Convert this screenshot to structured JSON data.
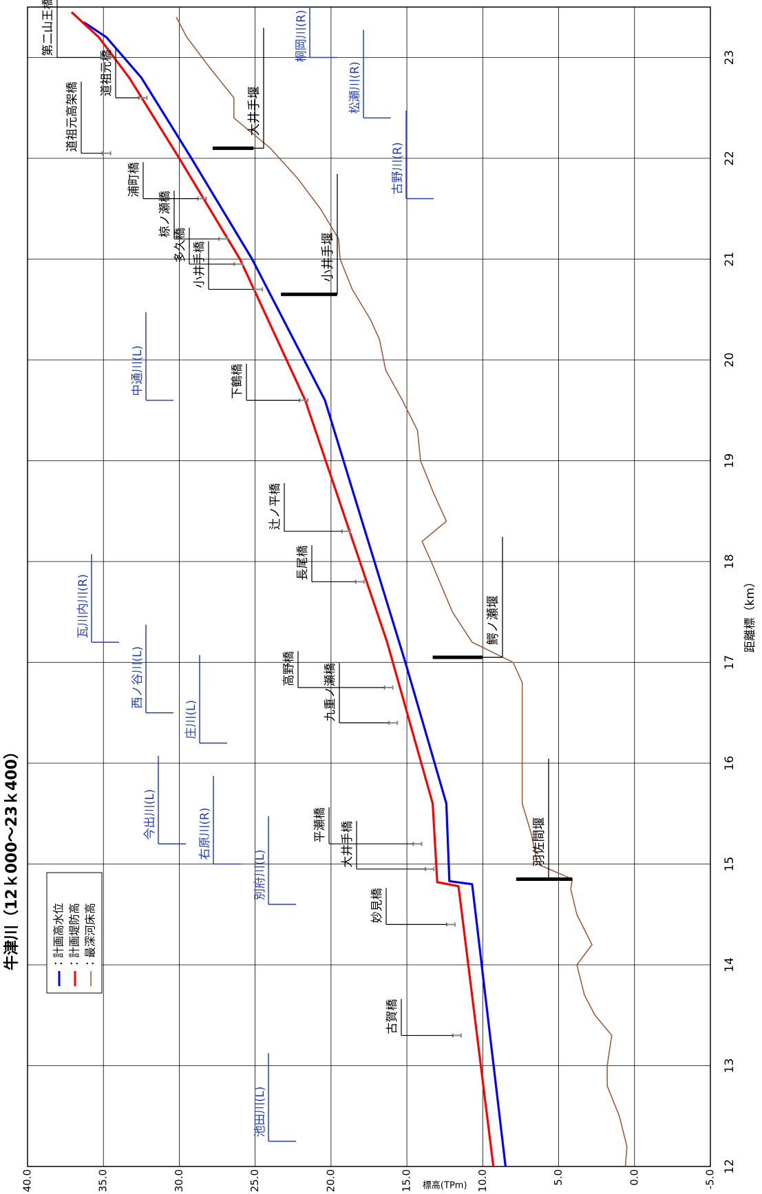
{
  "chart_data": {
    "type": "line",
    "title": "牛津川（12ｋ000～23ｋ400）",
    "x_label": "距離標（km）",
    "y_label": "標高(TPm)",
    "xlim": [
      12,
      23.5
    ],
    "ylim": [
      -5,
      40
    ],
    "xticks": [
      12,
      13,
      14,
      15,
      16,
      17,
      18,
      19,
      20,
      21,
      22,
      23
    ],
    "yticks": [
      {
        "value": 40,
        "label": "40.0"
      },
      {
        "value": 35,
        "label": "35.0"
      },
      {
        "value": 30,
        "label": "30.0"
      },
      {
        "value": 25,
        "label": "25.0"
      },
      {
        "value": 20,
        "label": "20.0"
      },
      {
        "value": 15,
        "label": "15.0"
      },
      {
        "value": 10,
        "label": "10.0"
      },
      {
        "value": 5,
        "label": "5.0"
      },
      {
        "value": 0,
        "label": "0.0"
      },
      {
        "value": -5,
        "label": "-5.0"
      }
    ],
    "grid": true,
    "legend": "upper left",
    "series": [
      {
        "name": "：計画高水位",
        "color": "#0000ff",
        "x": [
          12,
          14.8,
          14.83,
          15.6,
          17.0,
          19.6,
          21.0,
          22.0,
          22.8,
          23.2,
          23.35
        ],
        "values": [
          8.5,
          10.7,
          12.2,
          12.4,
          15.1,
          20.4,
          25.2,
          29.2,
          32.5,
          34.8,
          36.3
        ]
      },
      {
        "name": "：計画堤防高",
        "color": "#ff0000",
        "x": [
          12,
          14.78,
          14.82,
          15.6,
          17.2,
          19.6,
          21.0,
          22.0,
          22.8,
          23.2,
          23.45
        ],
        "values": [
          9.3,
          11.6,
          13.0,
          13.3,
          16.3,
          21.7,
          26.0,
          30.0,
          33.3,
          35.3,
          37.1
        ]
      },
      {
        "name": "：最深河床高",
        "color": "#a0522d",
        "x": [
          12.0,
          12.2,
          12.5,
          12.8,
          13.0,
          13.3,
          13.5,
          13.7,
          14.0,
          14.2,
          14.5,
          14.75,
          14.85,
          15.0,
          15.3,
          15.6,
          16.0,
          16.5,
          16.8,
          17.0,
          17.2,
          17.5,
          18.0,
          18.2,
          18.4,
          18.7,
          19.0,
          19.3,
          19.6,
          19.9,
          20.2,
          20.4,
          20.7,
          21.0,
          21.2,
          21.5,
          21.8,
          22.1,
          22.4,
          22.6,
          22.9,
          23.2,
          23.4
        ],
        "values": [
          0.6,
          0.5,
          1.0,
          1.8,
          1.8,
          1.5,
          2.6,
          3.3,
          3.8,
          2.8,
          3.8,
          4.2,
          4.1,
          6.4,
          6.8,
          7.4,
          7.4,
          7.4,
          7.4,
          8.0,
          10.7,
          12.0,
          13.4,
          14.0,
          12.4,
          13.3,
          14.1,
          14.3,
          15.3,
          16.4,
          16.8,
          17.4,
          18.6,
          19.4,
          19.5,
          20.7,
          22.2,
          24.0,
          26.4,
          26.4,
          28.0,
          29.5,
          30.2
        ]
      }
    ],
    "bridges": [
      {
        "name": "古賀橋",
        "km": 13.3,
        "elevation": 11.7
      },
      {
        "name": "妙見橋",
        "km": 14.4,
        "elevation": 12.1
      },
      {
        "name": "大井手橋",
        "km": 14.95,
        "elevation": 13.5
      },
      {
        "name": "平瀬橋",
        "km": 15.2,
        "elevation": 14.3
      },
      {
        "name": "九重ノ瀬橋",
        "km": 16.4,
        "elevation": 15.9
      },
      {
        "name": "高野橋",
        "km": 16.75,
        "elevation": 16.2
      },
      {
        "name": "長尾橋",
        "km": 17.8,
        "elevation": 18.1
      },
      {
        "name": "辻ノ平橋",
        "km": 18.3,
        "elevation": 19.0
      },
      {
        "name": "下鶴橋",
        "km": 19.6,
        "elevation": 21.8
      },
      {
        "name": "小井手橋",
        "km": 20.7,
        "elevation": 24.8
      },
      {
        "name": "多久橋",
        "km": 20.95,
        "elevation": 26.1
      },
      {
        "name": "椋ノ瀬橋",
        "km": 21.2,
        "elevation": 27.1
      },
      {
        "name": "浦町橋",
        "km": 21.6,
        "elevation": 28.5
      },
      {
        "name": "道祖元高架橋",
        "km": 22.05,
        "elevation": 34.8
      },
      {
        "name": "道祖元橋",
        "km": 22.6,
        "elevation": 32.4
      },
      {
        "name": "第二山王橋",
        "km": 23.0,
        "elevation": 34.9
      }
    ],
    "weirs": [
      {
        "name": "羽佐間堰",
        "km": 14.85,
        "top": 7.8,
        "bottom": 4.1
      },
      {
        "name": "鰐ノ瀬堰",
        "km": 17.05,
        "top": 13.3,
        "bottom": 10.0
      },
      {
        "name": "小井手堰",
        "km": 20.65,
        "top": 23.3,
        "bottom": 19.6
      },
      {
        "name": "大井手堰",
        "km": 22.1,
        "top": 27.8,
        "bottom": 25.1
      }
    ],
    "tributaries": [
      {
        "name": "池田川(L)",
        "km": 12.25
      },
      {
        "name": "右原川(R)",
        "km": 15.0
      },
      {
        "name": "別府川(L)",
        "km": 14.6
      },
      {
        "name": "今出川(L)",
        "km": 15.2
      },
      {
        "name": "西ノ谷川(L)",
        "km": 16.5
      },
      {
        "name": "庄川(L)",
        "km": 16.2
      },
      {
        "name": "瓦川内川(R)",
        "km": 17.2
      },
      {
        "name": "中通川(L)",
        "km": 19.6
      },
      {
        "name": "桐岡川(R)",
        "km": 23.0
      },
      {
        "name": "松瀬川(R)",
        "km": 22.4
      },
      {
        "name": "古野川(R)",
        "km": 21.6
      }
    ]
  }
}
